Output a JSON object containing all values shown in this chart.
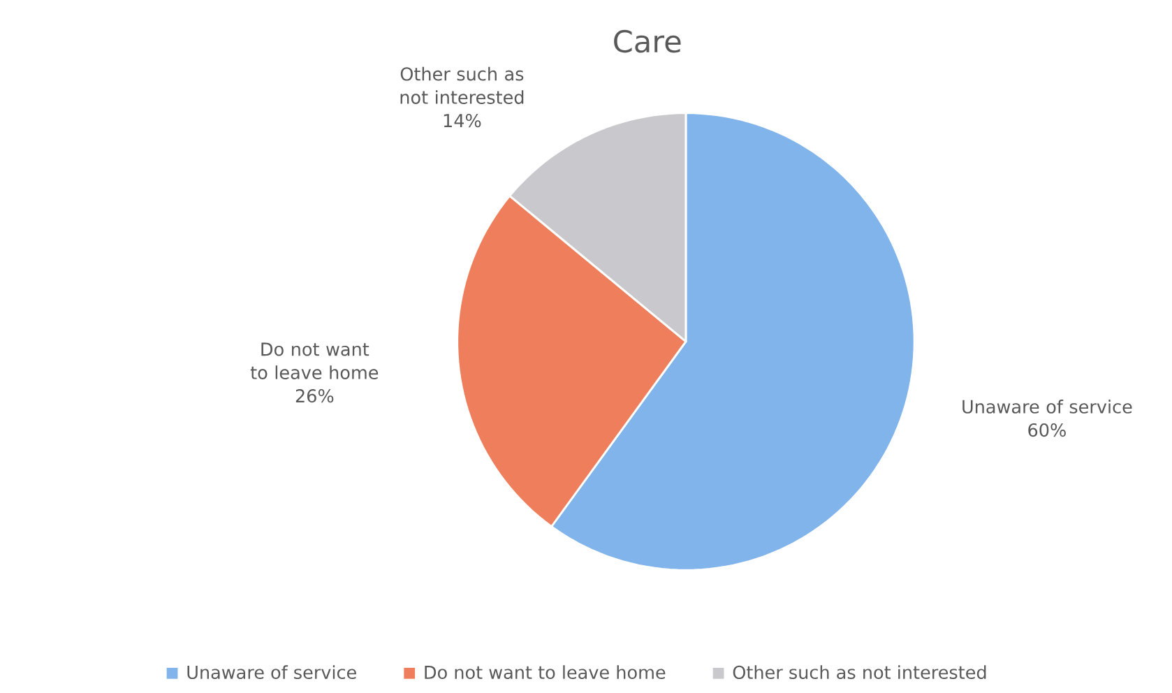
{
  "chart_data": {
    "type": "pie",
    "title": "Care",
    "categories": [
      "Unaware of service",
      "Do not want to leave home",
      "Other such as not interested"
    ],
    "values": [
      60,
      26,
      14
    ],
    "value_labels": [
      "60%",
      "26%",
      "14%"
    ],
    "colors": [
      "#80b4ea",
      "#ef7f5c",
      "#c9c9cd"
    ],
    "legend": "bottom"
  }
}
